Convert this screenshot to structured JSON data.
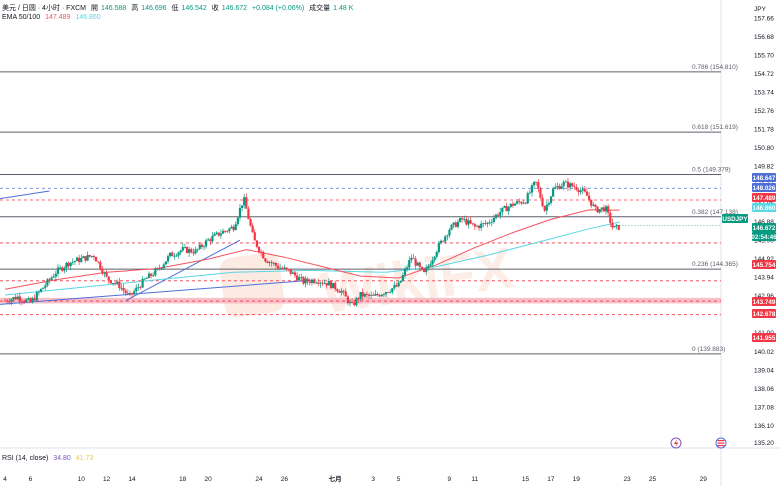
{
  "header": {
    "symbol_line": "美元 / 日圆 · 4小时 · FXCM",
    "open_label": "開",
    "open": "146.588",
    "high_label": "高",
    "high": "146.696",
    "low_label": "低",
    "low": "146.542",
    "close_label": "收",
    "close": "146.672",
    "change": "+0.084 (+0.06%)",
    "volume_label": "成交量",
    "volume": "1.48 K",
    "ema_label": "EMA 50/100",
    "ema50": "147.489",
    "ema100": "146.860"
  },
  "rsi": {
    "label": "RSI (14, close)",
    "v1": "34.80",
    "v2": "41.73"
  },
  "colors": {
    "up": "#089981",
    "down": "#f23645",
    "ema50": "#f7525f",
    "ema100": "#5ad6e6",
    "fib_line": "#5d606b",
    "trend_line": "#4f6fd8",
    "dashed_red": "#f23645",
    "dashed_blue": "#4f6fd8",
    "band": "#f6b6bf",
    "price_tag": "#089981",
    "watermark": "#f0b090"
  },
  "icons": [
    "lightning-icon",
    "us-flag-icon"
  ],
  "chart_data": {
    "type": "candlestick",
    "currency": "JPY",
    "ylim": [
      134.9,
      158.4
    ],
    "y_ticks": [
      135.2,
      136.1,
      137.08,
      138.06,
      139.04,
      140.02,
      141,
      141.98,
      142.96,
      143.94,
      144.92,
      145.9,
      146.88,
      147.86,
      148.84,
      149.82,
      150.8,
      151.78,
      152.76,
      153.74,
      154.72,
      155.7,
      156.68,
      157.66
    ],
    "y_tick_labels": [
      "135.20",
      "136.10",
      "137.08",
      "138.06",
      "139.04",
      "140.02",
      "141.00",
      "141.98",
      "142.96",
      "143.94",
      "144.92",
      "145.90",
      "146.88",
      "147.86",
      "148.84",
      "149.82",
      "150.80",
      "151.78",
      "152.76",
      "153.74",
      "154.72",
      "155.70",
      "156.68",
      "157.66"
    ],
    "x_tick_labels": [
      {
        "label": "4",
        "day": 4
      },
      {
        "label": "6",
        "day": 6
      },
      {
        "label": "10",
        "day": 10
      },
      {
        "label": "12",
        "day": 12
      },
      {
        "label": "14",
        "day": 14
      },
      {
        "label": "18",
        "day": 18
      },
      {
        "label": "20",
        "day": 20
      },
      {
        "label": "24",
        "day": 24
      },
      {
        "label": "26",
        "day": 26
      },
      {
        "label": "七月",
        "day": 30
      },
      {
        "label": "3",
        "day": 33
      },
      {
        "label": "5",
        "day": 35
      },
      {
        "label": "9",
        "day": 39
      },
      {
        "label": "11",
        "day": 41
      },
      {
        "label": "15",
        "day": 45
      },
      {
        "label": "17",
        "day": 47
      },
      {
        "label": "19",
        "day": 49
      },
      {
        "label": "23",
        "day": 53
      },
      {
        "label": "25",
        "day": 55
      },
      {
        "label": "29",
        "day": 59
      }
    ],
    "x_range_days": [
      3.6,
      60.4
    ],
    "fib_levels": [
      {
        "label": "0.786 (154.810)",
        "value": 154.81
      },
      {
        "label": "0.618 (151.619)",
        "value": 151.619
      },
      {
        "label": "0.5 (149.379)",
        "value": 149.379
      },
      {
        "label": "0.382 (147.138)",
        "value": 147.138
      },
      {
        "label": "0.236 (144.365)",
        "value": 144.365
      },
      {
        "label": "0 (139.883)",
        "value": 139.883
      }
    ],
    "price_tags": [
      {
        "label": "148.647",
        "value": 148.647,
        "color": "#4f6fd8"
      },
      {
        "label": "148.026",
        "value": 148.026,
        "color": "#4f6fd8"
      },
      {
        "label": "147.489",
        "value": 147.489,
        "color": "#f23645"
      },
      {
        "label": "146.860",
        "value": 146.86,
        "color": "#5ad6e6"
      },
      {
        "label": "USDJPY",
        "value": 146.672,
        "color": "#089981"
      },
      {
        "label": "146.672",
        "value": 146.672,
        "color": "#089981"
      },
      {
        "label": "02:54:46",
        "value": 146.672,
        "color": "#089981"
      },
      {
        "label": "145.754",
        "value": 145.754,
        "color": "#f23645"
      },
      {
        "label": "143.749",
        "value": 143.749,
        "color": "#f23645"
      },
      {
        "label": "142.678",
        "value": 142.678,
        "color": "#f23645"
      },
      {
        "label": "141.955",
        "value": 141.955,
        "color": "#f23645"
      }
    ],
    "dashed_levels": [
      {
        "value": 148.647,
        "color": "#4f6fd8"
      },
      {
        "value": 148.026,
        "color": "#f23645"
      },
      {
        "value": 145.754,
        "color": "#f23645"
      },
      {
        "value": 143.749,
        "color": "#f23645"
      },
      {
        "value": 142.678,
        "color": "#f23645"
      },
      {
        "value": 141.955,
        "color": "#f23645"
      }
    ],
    "band": {
      "low": 142.55,
      "high": 142.85
    },
    "trend_lines": [
      {
        "from": [
          3.6,
          142.5
        ],
        "to": [
          28.5,
          143.8
        ]
      },
      {
        "from": [
          13.5,
          142.7
        ],
        "to": [
          22.5,
          145.9
        ]
      },
      {
        "from": [
          3.6,
          148.1
        ],
        "to": [
          7.5,
          148.5
        ]
      }
    ],
    "close_path": [
      [
        4.0,
        142.7
      ],
      [
        5.0,
        142.9
      ],
      [
        6.0,
        142.6
      ],
      [
        7.0,
        143.4
      ],
      [
        8.0,
        144.2
      ],
      [
        9.0,
        144.7
      ],
      [
        10.0,
        144.9
      ],
      [
        11.0,
        145.1
      ],
      [
        12.0,
        143.9
      ],
      [
        13.0,
        143.5
      ],
      [
        13.8,
        142.9
      ],
      [
        15.0,
        143.8
      ],
      [
        16.0,
        144.3
      ],
      [
        17.0,
        145.1
      ],
      [
        18.0,
        145.4
      ],
      [
        19.0,
        145.3
      ],
      [
        20.0,
        145.9
      ],
      [
        21.0,
        146.3
      ],
      [
        22.0,
        146.6
      ],
      [
        22.8,
        148.1
      ],
      [
        23.6,
        145.9
      ],
      [
        24.5,
        144.9
      ],
      [
        25.5,
        144.5
      ],
      [
        26.5,
        144.2
      ],
      [
        27.5,
        143.7
      ],
      [
        28.5,
        143.8
      ],
      [
        29.5,
        143.6
      ],
      [
        30.5,
        143.2
      ],
      [
        31.3,
        142.4
      ],
      [
        32.0,
        143.0
      ],
      [
        33.0,
        142.9
      ],
      [
        34.0,
        143.2
      ],
      [
        35.0,
        143.5
      ],
      [
        36.0,
        145.0
      ],
      [
        37.0,
        144.1
      ],
      [
        38.0,
        145.4
      ],
      [
        39.0,
        146.5
      ],
      [
        40.0,
        147.0
      ],
      [
        41.0,
        146.6
      ],
      [
        42.0,
        146.8
      ],
      [
        43.0,
        147.4
      ],
      [
        44.0,
        147.8
      ],
      [
        45.0,
        148.0
      ],
      [
        45.8,
        149.0
      ],
      [
        46.5,
        147.5
      ],
      [
        47.2,
        148.6
      ],
      [
        48.0,
        148.9
      ],
      [
        49.0,
        148.7
      ],
      [
        49.8,
        148.3
      ],
      [
        50.5,
        147.5
      ],
      [
        51.3,
        147.6
      ],
      [
        51.9,
        146.5
      ],
      [
        52.4,
        146.6
      ]
    ],
    "ema50_path": [
      [
        4.0,
        143.3
      ],
      [
        8.0,
        143.8
      ],
      [
        12.0,
        144.2
      ],
      [
        16.0,
        144.4
      ],
      [
        20.0,
        144.9
      ],
      [
        23.0,
        145.4
      ],
      [
        26.0,
        145.0
      ],
      [
        29.0,
        144.5
      ],
      [
        32.0,
        144.0
      ],
      [
        35.0,
        143.9
      ],
      [
        38.0,
        144.6
      ],
      [
        41.0,
        145.5
      ],
      [
        44.0,
        146.3
      ],
      [
        47.0,
        147.0
      ],
      [
        50.0,
        147.5
      ],
      [
        52.4,
        147.49
      ]
    ],
    "ema100_path": [
      [
        4.0,
        143.0
      ],
      [
        10.0,
        143.4
      ],
      [
        16.0,
        143.8
      ],
      [
        22.0,
        144.2
      ],
      [
        28.0,
        144.3
      ],
      [
        34.0,
        144.2
      ],
      [
        38.0,
        144.5
      ],
      [
        42.0,
        145.1
      ],
      [
        46.0,
        145.8
      ],
      [
        50.0,
        146.5
      ],
      [
        52.4,
        146.86
      ]
    ],
    "watermark": "WikiFX"
  }
}
